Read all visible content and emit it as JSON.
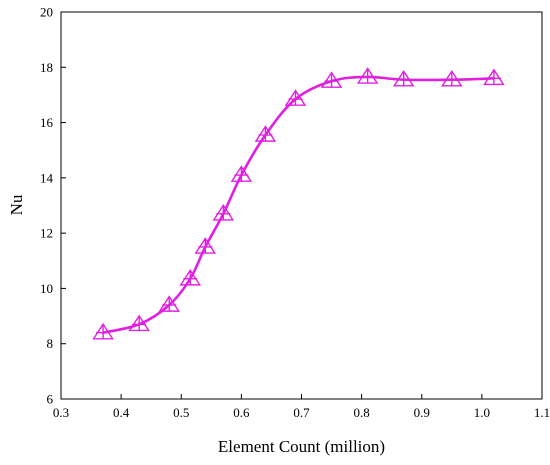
{
  "chart_data": {
    "type": "line",
    "title": "",
    "xlabel": "Element Count (million)",
    "ylabel": "Nu",
    "xlim": [
      0.3,
      1.1
    ],
    "ylim": [
      6,
      20
    ],
    "xticks": [
      "0.3",
      "0.4",
      "0.5",
      "0.6",
      "0.7",
      "0.8",
      "0.9",
      "1.0",
      "1.1"
    ],
    "yticks": [
      "6",
      "8",
      "10",
      "12",
      "14",
      "16",
      "18",
      "20"
    ],
    "grid": false,
    "legend": "none",
    "marker": "triangle-with-plus",
    "color": "#e020e0",
    "series": [
      {
        "x": [
          0.37,
          0.43,
          0.48,
          0.515,
          0.54,
          0.57,
          0.6,
          0.64,
          0.69,
          0.75,
          0.81,
          0.87,
          0.95,
          1.02
        ],
        "y": [
          8.4,
          8.7,
          9.4,
          10.35,
          11.5,
          12.7,
          14.1,
          15.55,
          16.85,
          17.5,
          17.65,
          17.55,
          17.55,
          17.6
        ]
      }
    ]
  }
}
